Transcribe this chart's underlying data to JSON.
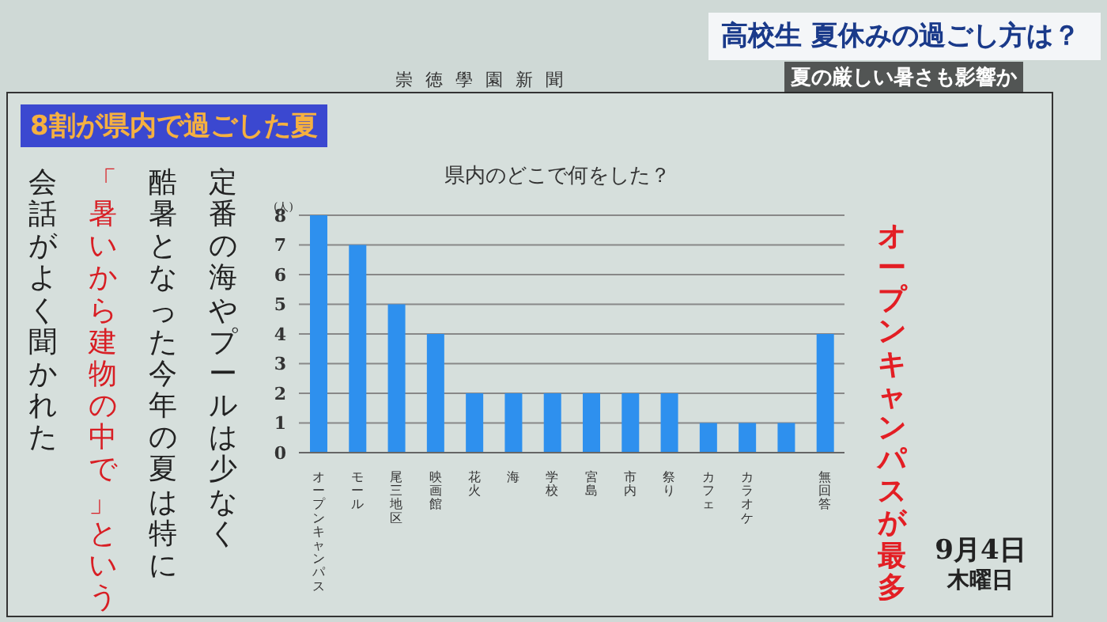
{
  "chart_data": {
    "type": "bar",
    "title": "県内のどこで何をした？",
    "ylabel": "(人)",
    "categories": [
      "オープンキャンパス",
      "モール",
      "尾三地区",
      "映画館",
      "花火",
      "海",
      "学校",
      "宮島",
      "市内",
      "祭り",
      "カフェ",
      "カラオケ",
      null,
      "無回答"
    ],
    "values": [
      8,
      7,
      5,
      4,
      2,
      2,
      2,
      2,
      2,
      2,
      1,
      1,
      1,
      4
    ],
    "color": "#2e90ee",
    "ylim": [
      0,
      8
    ],
    "yticks": [
      0,
      1,
      2,
      3,
      4,
      5,
      6,
      7,
      8
    ],
    "grid": "y",
    "annotations": [
      "高校生 夏休みの過ごし方は？",
      "夏の厳しい暑さも影響か",
      "崇徳學園新聞",
      "8割が県内で過ごした夏",
      "定番の海やプールは少なく",
      "酷暑となった今年の夏は特に",
      "「暑いから建物の中で」という",
      "会話がよく聞かれた",
      "オープンキャンパスが最多",
      "9月4日",
      "木曜日"
    ]
  }
}
